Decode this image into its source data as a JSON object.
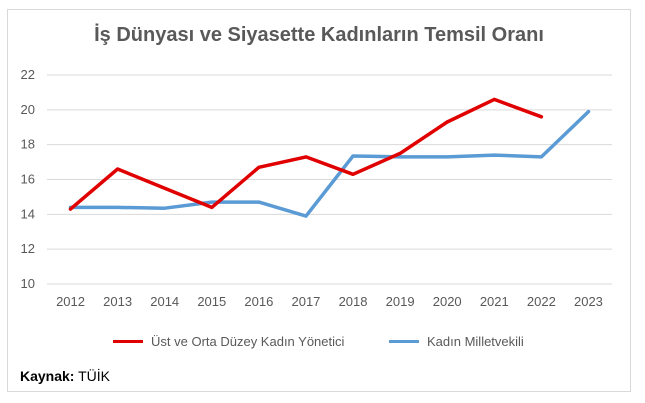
{
  "chart_data": {
    "type": "line",
    "title": "İş Dünyası ve Siyasette Kadınların Temsil Oranı",
    "xlabel": "",
    "ylabel": "",
    "ylim": [
      10,
      22
    ],
    "yticks": [
      10,
      12,
      14,
      16,
      18,
      20,
      22
    ],
    "categories": [
      "2012",
      "2013",
      "2014",
      "2015",
      "2016",
      "2017",
      "2018",
      "2019",
      "2020",
      "2021",
      "2022",
      "2023"
    ],
    "grid": true,
    "legend_position": "bottom",
    "series": [
      {
        "name": "Üst ve Orta Düzey Kadın Yönetici",
        "color": "#e00000",
        "values": [
          14.3,
          16.6,
          15.5,
          14.4,
          16.7,
          17.3,
          16.3,
          17.5,
          19.3,
          20.6,
          19.6,
          null
        ]
      },
      {
        "name": "Kadın Milletvekili",
        "color": "#5b9bd5",
        "values": [
          14.4,
          14.4,
          14.35,
          14.7,
          14.7,
          13.9,
          17.35,
          17.3,
          17.3,
          17.4,
          17.3,
          19.9
        ]
      }
    ]
  },
  "source": {
    "label": "Kaynak:",
    "value": "TÜİK"
  },
  "colors": {
    "grid": "#d9d9d9",
    "text": "#595959"
  }
}
